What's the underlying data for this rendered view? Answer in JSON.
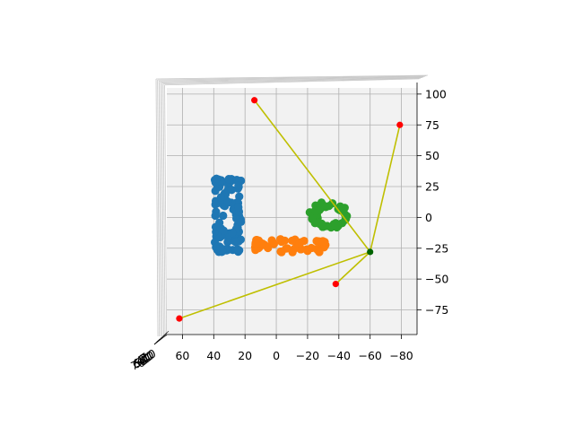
{
  "chart_data": {
    "type": "scatter",
    "projection": "3d",
    "title": "",
    "xlabel": "",
    "ylabel": "",
    "zlabel": "",
    "grid": true,
    "x_axis": {
      "range": [
        70,
        -90
      ],
      "ticks": [
        60,
        40,
        20,
        0,
        -20,
        -40,
        -60,
        -80
      ],
      "tick_labels": [
        "60",
        "40",
        "20",
        "0",
        "−20",
        "−40",
        "−60",
        "−80"
      ]
    },
    "y_axis": {
      "range": [
        -95,
        105
      ],
      "ticks": [
        100,
        75,
        50,
        25,
        0,
        -25,
        -50,
        -75
      ],
      "tick_labels": [
        "100",
        "75",
        "50",
        "25",
        "0",
        "−25",
        "−50",
        "−75"
      ]
    },
    "z_axis": {
      "tick_labels": [
        "70",
        "60",
        "50",
        "40",
        "30",
        "20",
        "10"
      ]
    },
    "colors": {
      "blue": "#1f77b4",
      "orange": "#ff7f0e",
      "green": "#2ca02c",
      "red": "#ff0000",
      "hub": "#006400",
      "line": "#bfbf00",
      "pane": "#f2f2f2"
    },
    "series": [
      {
        "shape": "rectangle",
        "color": "#1f77b4",
        "x": [
          24,
          38
        ],
        "y": [
          -27,
          30
        ],
        "density": 120
      },
      {
        "shape": "rectangle",
        "color": "#ff7f0e",
        "x": [
          -30,
          12
        ],
        "y": [
          -27,
          -19
        ],
        "density": 60
      },
      {
        "shape": "ring",
        "color": "#2ca02c",
        "center": [
          -34,
          2
        ],
        "radius": [
          11,
          6.5
        ],
        "density": 60
      }
    ],
    "hub": {
      "x": -60,
      "y": -28
    },
    "points": [
      {
        "x": 14,
        "y": 95
      },
      {
        "x": -79,
        "y": 75
      },
      {
        "x": -38,
        "y": -54
      },
      {
        "x": 62,
        "y": -82
      }
    ]
  }
}
